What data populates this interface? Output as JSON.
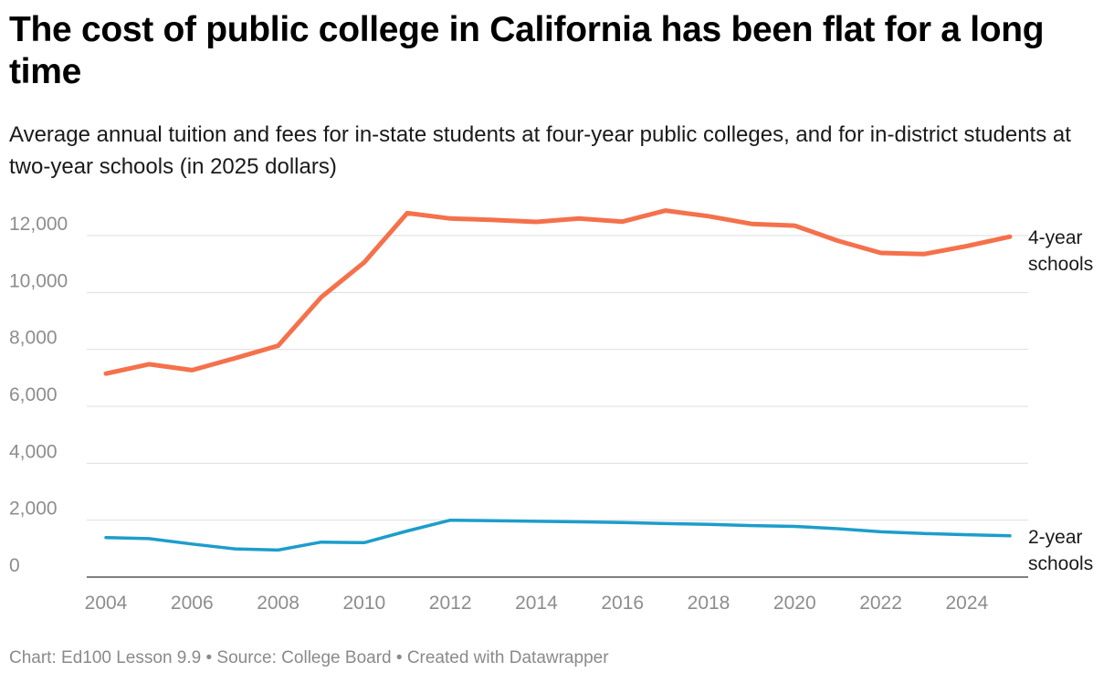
{
  "title": "The cost of public college in California has been flat for a long time",
  "subtitle": "Average annual tuition and fees for in-state students at four-year public colleges, and for in-district students at two-year schools (in 2025 dollars)",
  "footer": {
    "credit": "Chart: Ed100 Lesson 9.9",
    "separator": "•",
    "source": "Source: College Board",
    "created": "Created with Datawrapper"
  },
  "chart_data": {
    "type": "line",
    "title": "The cost of public college in California has been flat for a long time",
    "xlabel": "",
    "ylabel": "",
    "x": [
      2004,
      2005,
      2006,
      2007,
      2008,
      2009,
      2010,
      2011,
      2012,
      2013,
      2014,
      2015,
      2016,
      2017,
      2018,
      2019,
      2020,
      2021,
      2022,
      2023,
      2024,
      2025
    ],
    "xlim": [
      2004,
      2025
    ],
    "ylim": [
      0,
      12000
    ],
    "yticks": [
      0,
      2000,
      4000,
      6000,
      8000,
      10000,
      12000
    ],
    "ytick_labels": [
      "0",
      "2,000",
      "4,000",
      "6,000",
      "8,000",
      "10,000",
      "12,000"
    ],
    "xticks": [
      2004,
      2006,
      2008,
      2010,
      2012,
      2014,
      2016,
      2018,
      2020,
      2022,
      2024
    ],
    "xtick_labels": [
      "2004",
      "2006",
      "2008",
      "2010",
      "2012",
      "2014",
      "2016",
      "2018",
      "2020",
      "2022",
      "2024"
    ],
    "grid": true,
    "series": [
      {
        "name": "4-year schools",
        "label_lines": [
          "4-year",
          "schools"
        ],
        "color": "#f4714b",
        "values": [
          7150,
          7480,
          7270,
          7690,
          8130,
          9830,
          11060,
          12790,
          12600,
          12550,
          12480,
          12600,
          12490,
          12880,
          12680,
          12410,
          12350,
          11820,
          11390,
          11350,
          11630,
          11960
        ]
      },
      {
        "name": "2-year schools",
        "label_lines": [
          "2-year",
          "schools"
        ],
        "color": "#1d9dcb",
        "values": [
          1390,
          1350,
          1160,
          990,
          950,
          1230,
          1210,
          1620,
          2000,
          1980,
          1960,
          1940,
          1920,
          1880,
          1850,
          1810,
          1780,
          1700,
          1590,
          1530,
          1490,
          1450
        ]
      }
    ]
  }
}
